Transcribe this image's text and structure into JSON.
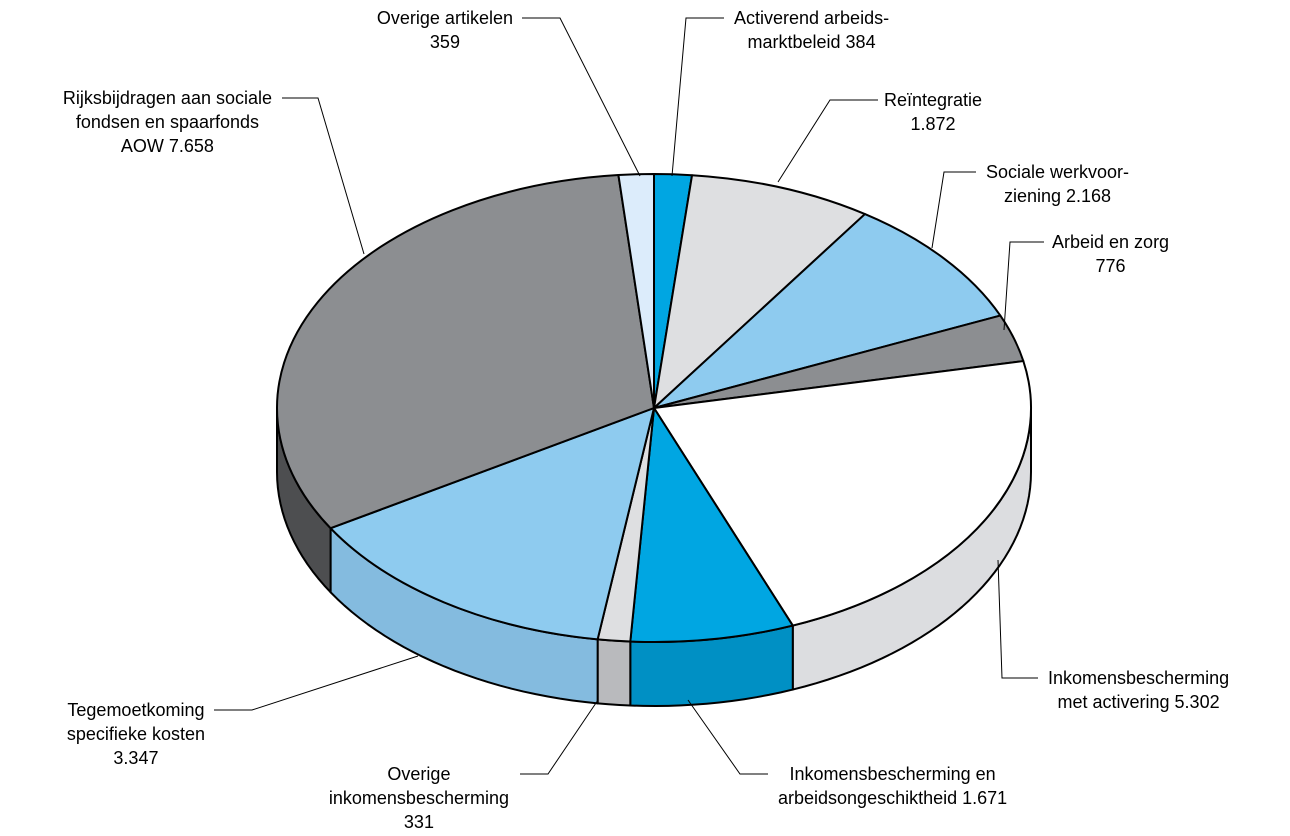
{
  "chart_data": {
    "type": "pie",
    "title": "",
    "unit": "",
    "slices": [
      {
        "label": [
          "Activerend arbeids-",
          "marktbeleid 384"
        ],
        "value": 384,
        "color": "#00a6e2",
        "side_color": "#0090c4"
      },
      {
        "label": [
          "Reïntegratie",
          "1.872"
        ],
        "value": 1872,
        "color": "#dedfe1",
        "side_color": "#cdced1"
      },
      {
        "label": [
          "Sociale werkvoor-",
          "ziening 2.168"
        ],
        "value": 2168,
        "color": "#8ecbef",
        "side_color": "#7bb8dc"
      },
      {
        "label": [
          "Arbeid en zorg",
          "776"
        ],
        "value": 776,
        "color": "#8c8e91",
        "side_color": "#6e7072"
      },
      {
        "label": [
          "Inkomensbescherming",
          "met activering 5.302"
        ],
        "value": 5302,
        "color": "#ffffff",
        "side_color": "#dcdde0"
      },
      {
        "label": [
          "Inkomensbescherming en",
          "arbeidsongeschiktheid 1.671"
        ],
        "value": 1671,
        "color": "#00a6e2",
        "side_color": "#0090c4"
      },
      {
        "label": [
          "Overige",
          "inkomensbescherming",
          "331"
        ],
        "value": 331,
        "color": "#dedfe1",
        "side_color": "#b9babd"
      },
      {
        "label": [
          "Tegemoetkoming",
          "specifieke kosten",
          "3.347"
        ],
        "value": 3347,
        "color": "#8ecbef",
        "side_color": "#84bbdf"
      },
      {
        "label": [
          "Rijksbijdragen aan sociale",
          "fondsen en spaarfonds",
          "AOW 7.658"
        ],
        "value": 7658,
        "color": "#8c8e91",
        "side_color": "#4d4e50"
      },
      {
        "label": [
          "Overige artikelen",
          "359"
        ],
        "value": 359,
        "color": "#dcecfb",
        "side_color": "#c4d6ea"
      }
    ]
  }
}
